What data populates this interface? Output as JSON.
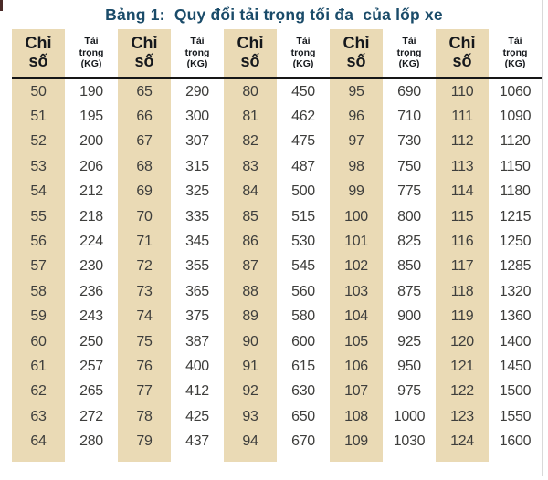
{
  "page": {
    "title": "Bảng 1:  Quy đổi tải trọng tối đa  của lốp xe"
  },
  "table": {
    "header": {
      "index_label": "Chỉ số",
      "load_label": "Tải trọng (KG)"
    },
    "groups": [
      {
        "indices": [
          "50",
          "51",
          "52",
          "53",
          "54",
          "55",
          "56",
          "57",
          "58",
          "59",
          "60",
          "61",
          "62",
          "63",
          "64"
        ],
        "loads": [
          "190",
          "195",
          "200",
          "206",
          "212",
          "218",
          "224",
          "230",
          "236",
          "243",
          "250",
          "257",
          "265",
          "272",
          "280"
        ]
      },
      {
        "indices": [
          "65",
          "66",
          "67",
          "68",
          "69",
          "70",
          "71",
          "72",
          "73",
          "74",
          "75",
          "76",
          "77",
          "78",
          "79"
        ],
        "loads": [
          "290",
          "300",
          "307",
          "315",
          "325",
          "335",
          "345",
          "355",
          "365",
          "375",
          "387",
          "400",
          "412",
          "425",
          "437"
        ]
      },
      {
        "indices": [
          "80",
          "81",
          "82",
          "83",
          "84",
          "85",
          "86",
          "87",
          "88",
          "89",
          "90",
          "91",
          "92",
          "93",
          "94"
        ],
        "loads": [
          "450",
          "462",
          "475",
          "487",
          "500",
          "515",
          "530",
          "545",
          "560",
          "580",
          "600",
          "615",
          "630",
          "650",
          "670"
        ]
      },
      {
        "indices": [
          "95",
          "96",
          "97",
          "98",
          "99",
          "100",
          "101",
          "102",
          "103",
          "104",
          "105",
          "106",
          "107",
          "108",
          "109"
        ],
        "loads": [
          "690",
          "710",
          "730",
          "750",
          "775",
          "800",
          "825",
          "850",
          "875",
          "900",
          "925",
          "950",
          "975",
          "1000",
          "1030"
        ]
      },
      {
        "indices": [
          "110",
          "111",
          "112",
          "113",
          "114",
          "115",
          "116",
          "117",
          "118",
          "119",
          "120",
          "121",
          "122",
          "123",
          "124"
        ],
        "loads": [
          "1060",
          "1090",
          "1120",
          "1150",
          "1180",
          "1215",
          "1250",
          "1285",
          "1320",
          "1360",
          "1400",
          "1450",
          "1500",
          "1550",
          "1600"
        ]
      }
    ]
  },
  "colors": {
    "column_tint": "#eadab5",
    "title_text": "#1a4b69",
    "header_text": "#15181c",
    "cell_text": "#3e3e3c",
    "rule": "#161616"
  }
}
